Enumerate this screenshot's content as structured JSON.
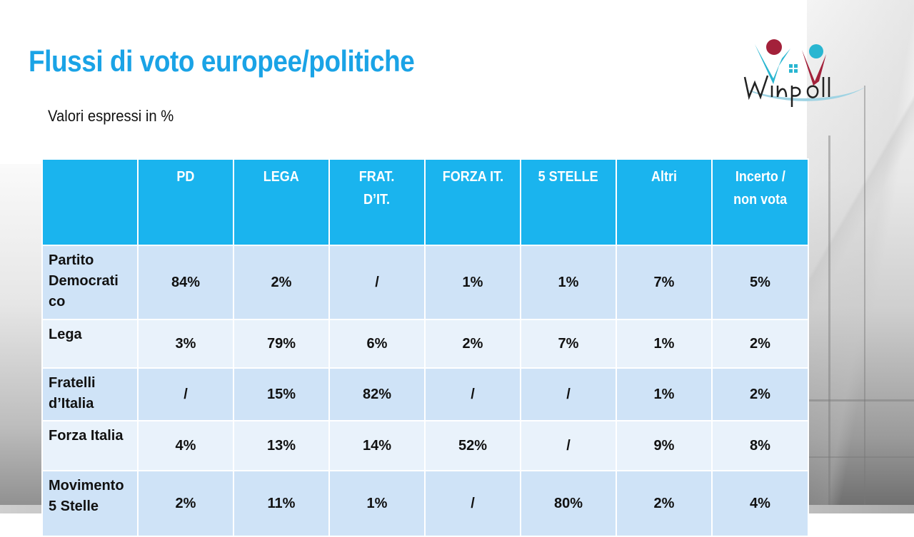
{
  "slide": {
    "title": "Flussi di voto europee/politiche",
    "subtitle": "Valori espressi in %"
  },
  "logo": {
    "text": "Winpoll",
    "colors": {
      "red": "#a3213a",
      "cyan": "#29b6d1",
      "dark": "#222222",
      "swoosh": "#9fd3e3"
    }
  },
  "table": {
    "columns": [
      "",
      "PD",
      "LEGA",
      "FRAT. D’IT.",
      "FORZA IT.",
      "5 STELLE",
      "Altri",
      "Incerto / non vota"
    ],
    "header_lines": [
      [
        ""
      ],
      [
        "PD"
      ],
      [
        "LEGA"
      ],
      [
        "FRAT.",
        "D’IT."
      ],
      [
        "FORZA IT."
      ],
      [
        "5 STELLE"
      ],
      [
        "Altri"
      ],
      [
        "Incerto /",
        "non vota"
      ]
    ],
    "rows": [
      {
        "label_lines": [
          "Partito",
          "Democrati",
          "co"
        ],
        "values": [
          "84%",
          "2%",
          "/",
          "1%",
          "1%",
          "7%",
          "5%"
        ]
      },
      {
        "label_lines": [
          "Lega"
        ],
        "values": [
          "3%",
          "79%",
          "6%",
          "2%",
          "7%",
          "1%",
          "2%"
        ]
      },
      {
        "label_lines": [
          "Fratelli",
          "d’Italia"
        ],
        "values": [
          "/",
          "15%",
          "82%",
          "/",
          "/",
          "1%",
          "2%"
        ]
      },
      {
        "label_lines": [
          "Forza Italia"
        ],
        "values": [
          "4%",
          "13%",
          "14%",
          "52%",
          "/",
          "9%",
          "8%"
        ]
      },
      {
        "label_lines": [
          "Movimento",
          "5 Stelle"
        ],
        "values": [
          "2%",
          "11%",
          "1%",
          "/",
          "80%",
          "2%",
          "4%"
        ]
      }
    ],
    "colors": {
      "header_bg": "#1ab4ee",
      "row_dark": "#cfe3f7",
      "row_light": "#e9f2fb",
      "title": "#1aa3e6"
    }
  }
}
